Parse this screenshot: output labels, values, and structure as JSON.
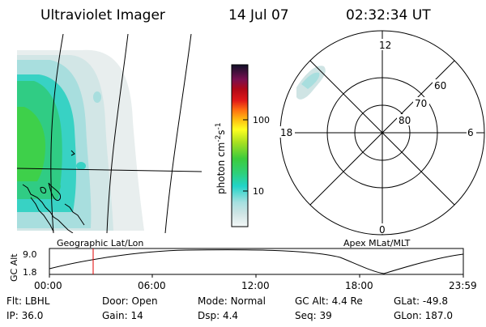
{
  "header": {
    "instrument": "Ultraviolet Imager",
    "date": "14 Jul 07",
    "time": "02:32:34 UT"
  },
  "colorbar": {
    "unit_text": "photon cm",
    "unit_sup1": "-2",
    "unit_mid": "s",
    "unit_sup2": "-1",
    "ticks": [
      "100",
      "10"
    ]
  },
  "polar_plot": {
    "mlt_labels": {
      "top": "12",
      "bottom": "0",
      "left": "18",
      "right": "6"
    },
    "lat_labels": [
      "60",
      "70",
      "80"
    ]
  },
  "altitude_panel": {
    "y_axis_label": "GC Alt",
    "y_ticks": [
      "9.0",
      "1.8"
    ],
    "left_caption": "Geographic Lat/Lon",
    "right_caption": "Apex MLat/MLT",
    "x_ticks": [
      "00:00",
      "06:00",
      "12:00",
      "18:00",
      "23:59"
    ]
  },
  "status": {
    "row1": [
      {
        "label": "Flt:",
        "value": "LBHL"
      },
      {
        "label": "Door:",
        "value": "Open"
      },
      {
        "label": "Mode:",
        "value": "Normal"
      },
      {
        "label": "GC Alt:",
        "value": "4.4 Re"
      },
      {
        "label": "GLat:",
        "value": "-49.8"
      }
    ],
    "row2": [
      {
        "label": "IP:",
        "value": "36.0"
      },
      {
        "label": "Gain:",
        "value": "14"
      },
      {
        "label": "Dsp:",
        "value": "4.4"
      },
      {
        "label": "Seq:",
        "value": "39"
      },
      {
        "label": "GLon:",
        "value": "187.0"
      }
    ]
  }
}
